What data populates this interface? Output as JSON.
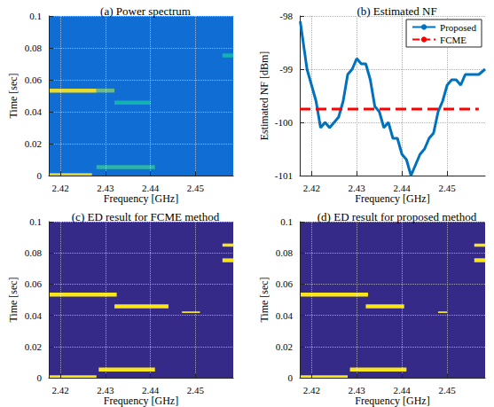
{
  "chart_data": [
    {
      "type": "heatmap",
      "title": "(a) Power spectrum",
      "xlabel": "Frequency [GHz]",
      "ylabel": "Time [sec]",
      "xlim": [
        2.4174,
        2.4584
      ],
      "xticks": [
        2.42,
        2.43,
        2.44,
        2.45
      ],
      "ylim": [
        0,
        0.1
      ],
      "yticks": [
        0,
        0.02,
        0.04,
        0.06,
        0.08,
        0.1
      ],
      "grid": true,
      "color_range": [
        0,
        1
      ],
      "cells": [
        [
          2.4174,
          2.4584,
          0,
          0.1,
          0.3
        ],
        [
          2.4174,
          2.428,
          0.052,
          0.0545,
          0.95
        ],
        [
          2.428,
          2.432,
          0.052,
          0.0545,
          0.65
        ],
        [
          2.4174,
          2.427,
          0,
          0.0015,
          0.9
        ],
        [
          2.428,
          2.441,
          0.004,
          0.0065,
          0.55
        ],
        [
          2.432,
          2.44,
          0.0445,
          0.047,
          0.5
        ],
        [
          2.456,
          2.4584,
          0.074,
          0.0765,
          0.5
        ]
      ]
    },
    {
      "type": "line",
      "title": "(b) Estimated NF",
      "xlabel": "Frequency [GHz]",
      "ylabel": "Estimated NF [dBm]",
      "xlim": [
        2.4174,
        2.4584
      ],
      "xticks": [
        2.42,
        2.43,
        2.44,
        2.45
      ],
      "ylim": [
        -101,
        -98
      ],
      "yticks": [
        -98,
        -99,
        -100,
        -101
      ],
      "grid": true,
      "legend": "upper right",
      "series": [
        {
          "name": "Proposed",
          "color": "#0072bd",
          "line_style": "solid",
          "x": [
            2.4175,
            2.419,
            2.421,
            2.422,
            2.423,
            2.424,
            2.425,
            2.426,
            2.427,
            2.428,
            2.429,
            2.43,
            2.431,
            2.432,
            2.433,
            2.434,
            2.435,
            2.436,
            2.437,
            2.438,
            2.439,
            2.44,
            2.441,
            2.442,
            2.443,
            2.444,
            2.445,
            2.446,
            2.447,
            2.448,
            2.449,
            2.45,
            2.451,
            2.452,
            2.453,
            2.454,
            2.455,
            2.456,
            2.457,
            2.4584
          ],
          "values": [
            -98.1,
            -99.0,
            -99.6,
            -100.1,
            -100.0,
            -100.1,
            -100.0,
            -99.9,
            -99.6,
            -99.1,
            -99.0,
            -98.8,
            -98.9,
            -98.9,
            -99.2,
            -99.7,
            -99.8,
            -100.1,
            -100.0,
            -100.3,
            -100.3,
            -100.6,
            -100.7,
            -101.0,
            -100.8,
            -100.6,
            -100.5,
            -100.3,
            -100.2,
            -99.8,
            -99.6,
            -99.3,
            -99.2,
            -99.2,
            -99.3,
            -99.1,
            -99.1,
            -99.1,
            -99.1,
            -99.0
          ]
        },
        {
          "name": "FCME",
          "color": "#ff0000",
          "line_style": "dashed",
          "x": [
            2.4174,
            2.457
          ],
          "values": [
            -99.75,
            -99.75
          ]
        }
      ]
    },
    {
      "type": "heatmap",
      "title": "(c) ED result for FCME method",
      "xlabel": "Frequency [GHz]",
      "ylabel": "Time [sec]",
      "xlim": [
        2.4174,
        2.4584
      ],
      "xticks": [
        2.42,
        2.43,
        2.44,
        2.45
      ],
      "ylim": [
        0,
        0.1
      ],
      "yticks": [
        0,
        0.02,
        0.04,
        0.06,
        0.08,
        0.1
      ],
      "grid": true,
      "color_range": [
        0,
        1
      ],
      "cells": [
        [
          2.4174,
          2.4584,
          0,
          0.1,
          0
        ],
        [
          2.4174,
          2.4325,
          0.052,
          0.0545,
          1
        ],
        [
          2.432,
          2.444,
          0.0445,
          0.047,
          1
        ],
        [
          2.4285,
          2.441,
          0.004,
          0.0065,
          1
        ],
        [
          2.4174,
          2.428,
          0,
          0.0015,
          1
        ],
        [
          2.456,
          2.4584,
          0.074,
          0.0765,
          1
        ],
        [
          2.456,
          2.4584,
          0.084,
          0.086,
          1
        ],
        [
          2.447,
          2.451,
          0.0415,
          0.0425,
          1
        ]
      ]
    },
    {
      "type": "heatmap",
      "title": "(d) ED result for proposed method",
      "xlabel": "Frequency [GHz]",
      "ylabel": "Time [sec]",
      "xlim": [
        2.4174,
        2.4584
      ],
      "xticks": [
        2.42,
        2.43,
        2.44,
        2.45
      ],
      "ylim": [
        0,
        0.1
      ],
      "yticks": [
        0,
        0.02,
        0.04,
        0.06,
        0.08,
        0.1
      ],
      "grid": true,
      "color_range": [
        0,
        1
      ],
      "cells": [
        [
          2.4174,
          2.4584,
          0,
          0.1,
          0
        ],
        [
          2.4174,
          2.4325,
          0.052,
          0.0545,
          1
        ],
        [
          2.432,
          2.4405,
          0.0445,
          0.047,
          1
        ],
        [
          2.4285,
          2.441,
          0.004,
          0.0065,
          1
        ],
        [
          2.4174,
          2.428,
          0,
          0.0015,
          1
        ],
        [
          2.456,
          2.4584,
          0.074,
          0.0765,
          1
        ],
        [
          2.456,
          2.4584,
          0.084,
          0.086,
          1
        ],
        [
          2.448,
          2.45,
          0.0415,
          0.0425,
          1
        ]
      ]
    }
  ]
}
